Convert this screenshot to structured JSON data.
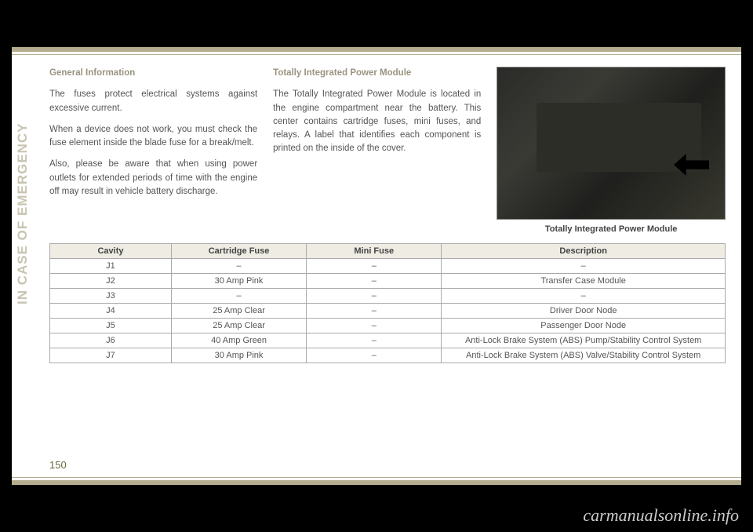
{
  "side_tab": "IN CASE OF EMERGENCY",
  "page_number": "150",
  "watermark": "carmanualsonline.info",
  "col1": {
    "heading": "General Information",
    "p1": "The fuses protect electrical systems against excessive current.",
    "p2": "When a device does not work, you must check the fuse element inside the blade fuse for a break/melt.",
    "p3": "Also, please be aware that when using power outlets for extended periods of time with the engine off may result in vehicle battery discharge."
  },
  "col2": {
    "heading": "Totally Integrated Power Module",
    "p1": "The Totally Integrated Power Module is located in the engine compartment near the battery. This center contains cartridge fuses, mini fuses, and relays. A label that identifies each component is printed on the inside of the cover."
  },
  "photo_caption": "Totally Integrated Power Module",
  "table": {
    "headers": {
      "c1": "Cavity",
      "c2": "Cartridge Fuse",
      "c3": "Mini Fuse",
      "c4": "Description"
    },
    "rows": [
      {
        "c1": "J1",
        "c2": "–",
        "c3": "–",
        "c4": "–"
      },
      {
        "c1": "J2",
        "c2": "30 Amp Pink",
        "c3": "–",
        "c4": "Transfer Case Module"
      },
      {
        "c1": "J3",
        "c2": "–",
        "c3": "–",
        "c4": "–"
      },
      {
        "c1": "J4",
        "c2": "25 Amp Clear",
        "c3": "–",
        "c4": "Driver Door Node"
      },
      {
        "c1": "J5",
        "c2": "25 Amp Clear",
        "c3": "–",
        "c4": "Passenger Door Node"
      },
      {
        "c1": "J6",
        "c2": "40 Amp Green",
        "c3": "–",
        "c4": "Anti-Lock Brake System (ABS) Pump/Stability Control System"
      },
      {
        "c1": "J7",
        "c2": "30 Amp Pink",
        "c3": "–",
        "c4": "Anti-Lock Brake System (ABS) Valve/Stability Control System"
      }
    ]
  },
  "colors": {
    "band": "#b5ad8f",
    "side_text": "#c9c4b0",
    "heading": "#999480",
    "body_text": "#555555",
    "page_num": "#6b6840",
    "th_bg": "#eeece3"
  }
}
